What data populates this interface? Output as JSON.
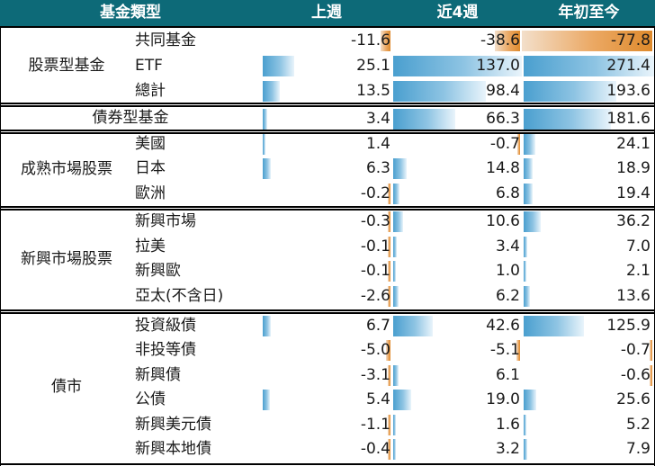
{
  "header": {
    "type": "基金類型",
    "col1": "上週",
    "col2": "近4週",
    "col3": "年初至今"
  },
  "groups": [
    {
      "label": "股票型基金",
      "rows": [
        {
          "label": "共同基金",
          "values": [
            "-11.6",
            "-38.6",
            "-77.8"
          ]
        },
        {
          "label": "ETF",
          "values": [
            "25.1",
            "137.0",
            "271.4"
          ]
        },
        {
          "label": "總計",
          "values": [
            "13.5",
            "98.4",
            "193.6"
          ]
        }
      ]
    },
    {
      "label": "債券型基金",
      "rows": [
        {
          "label": "",
          "values": [
            "3.4",
            "66.3",
            "181.6"
          ]
        }
      ]
    },
    {
      "label": "成熟市場股票",
      "rows": [
        {
          "label": "美國",
          "values": [
            "1.4",
            "-0.7",
            "24.1"
          ]
        },
        {
          "label": "日本",
          "values": [
            "6.3",
            "14.8",
            "18.9"
          ]
        },
        {
          "label": "歐洲",
          "values": [
            "-0.2",
            "6.8",
            "19.4"
          ]
        }
      ]
    },
    {
      "label": "新興市場股票",
      "rows": [
        {
          "label": "新興市場",
          "values": [
            "-0.3",
            "10.6",
            "36.2"
          ]
        },
        {
          "label": "拉美",
          "values": [
            "-0.1",
            "3.4",
            "7.0"
          ]
        },
        {
          "label": "新興歐",
          "values": [
            "-0.1",
            "1.0",
            "2.1"
          ]
        },
        {
          "label": "亞太(不含日)",
          "values": [
            "-2.6",
            "6.2",
            "13.6"
          ]
        }
      ]
    },
    {
      "label": "債市",
      "rows": [
        {
          "label": "投資級債",
          "values": [
            "6.7",
            "42.6",
            "125.9"
          ]
        },
        {
          "label": "非投等債",
          "values": [
            "-5.0",
            "-5.1",
            "-0.7"
          ]
        },
        {
          "label": "新興債",
          "values": [
            "-3.1",
            "6.1",
            "-0.6"
          ]
        },
        {
          "label": "公債",
          "values": [
            "5.4",
            "19.0",
            "25.6"
          ]
        },
        {
          "label": "新興美元債",
          "values": [
            "-1.1",
            "1.6",
            "5.2"
          ]
        },
        {
          "label": "新興本地債",
          "values": [
            "-0.4",
            "3.2",
            "7.9"
          ]
        }
      ]
    }
  ],
  "colors": {
    "header_bg": "#0d6a78",
    "positive_bar": "#4a9fcf",
    "negative_bar": "#de8a2c"
  }
}
